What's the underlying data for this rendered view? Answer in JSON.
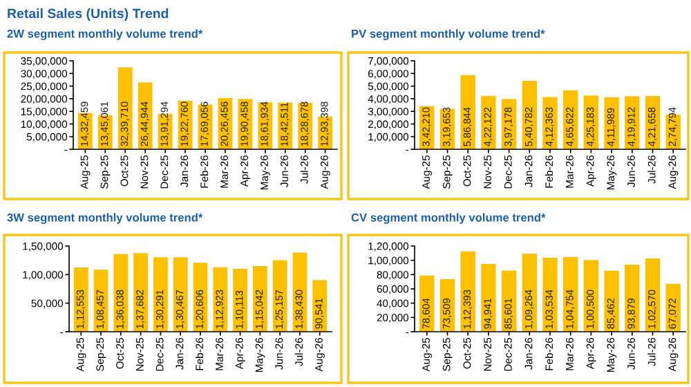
{
  "chart_data": [
    {
      "type": "bar",
      "title": "2W segment monthly volume trend*",
      "annotations": [
        "Retail Sales (Units) Trend"
      ],
      "categories": [
        "Aug-25",
        "Sep-25",
        "Oct-25",
        "Nov-25",
        "Dec-25",
        "Jan-26",
        "Feb-26",
        "Mar-26",
        "Apr-26",
        "May-26",
        "Jun-26",
        "Jul-26",
        "Aug-26"
      ],
      "series": [
        {
          "color": "#ffc000",
          "values": [
            1432459,
            1345061,
            3239710,
            2644944,
            1391294,
            1922760,
            1769056,
            2026456,
            1990458,
            1861934,
            1842511,
            1828678,
            1293398
          ],
          "value_labels": [
            "14,32,459",
            "13,45,061",
            "32,39,710",
            "26,44,944",
            "13,91,294",
            "19,22,760",
            "17,69,056",
            "20,26,456",
            "19,90,458",
            "18,61,934",
            "18,42,511",
            "18,28,678",
            "12,93,398"
          ]
        }
      ],
      "ylim": [
        0,
        3500000
      ],
      "yticks": [
        {
          "value": 0,
          "label": "-"
        },
        {
          "value": 500000,
          "label": "5,00,000"
        },
        {
          "value": 1000000,
          "label": "10,00,000"
        },
        {
          "value": 1500000,
          "label": "15,00,000"
        },
        {
          "value": 2000000,
          "label": "20,00,000"
        },
        {
          "value": 2500000,
          "label": "25,00,000"
        },
        {
          "value": 3000000,
          "label": "30,00,000"
        },
        {
          "value": 3500000,
          "label": "35,00,000"
        }
      ],
      "grid": false,
      "legend": false
    },
    {
      "type": "bar",
      "title": "PV segment monthly volume trend*",
      "categories": [
        "Aug-25",
        "Sep-25",
        "Oct-25",
        "Nov-25",
        "Dec-25",
        "Jan-26",
        "Feb-26",
        "Mar-26",
        "Apr-26",
        "May-26",
        "Jun-26",
        "Jul-26",
        "Aug-26"
      ],
      "series": [
        {
          "color": "#ffc000",
          "values": [
            342210,
            319653,
            586844,
            422122,
            397178,
            540782,
            412363,
            465622,
            425183,
            411989,
            419912,
            421658,
            274794
          ],
          "value_labels": [
            "3,42,210",
            "3,19,653",
            "5,86,844",
            "4,22,122",
            "3,97,178",
            "5,40,782",
            "4,12,363",
            "4,65,622",
            "4,25,183",
            "4,11,989",
            "4,19,912",
            "4,21,658",
            "2,74,794"
          ]
        }
      ],
      "ylim": [
        0,
        700000
      ],
      "yticks": [
        {
          "value": 0,
          "label": "-"
        },
        {
          "value": 100000,
          "label": "1,00,000"
        },
        {
          "value": 200000,
          "label": "2,00,000"
        },
        {
          "value": 300000,
          "label": "3,00,000"
        },
        {
          "value": 400000,
          "label": "4,00,000"
        },
        {
          "value": 500000,
          "label": "5,00,000"
        },
        {
          "value": 600000,
          "label": "6,00,000"
        },
        {
          "value": 700000,
          "label": "7,00,000"
        }
      ],
      "grid": false,
      "legend": false
    },
    {
      "type": "bar",
      "title": "3W segment monthly volume trend*",
      "categories": [
        "Aug-25",
        "Sep-25",
        "Oct-25",
        "Nov-25",
        "Dec-25",
        "Jan-26",
        "Feb-26",
        "Mar-26",
        "Apr-26",
        "May-26",
        "Jun-26",
        "Jul-26",
        "Aug-26"
      ],
      "series": [
        {
          "color": "#ffc000",
          "values": [
            112553,
            108457,
            136038,
            137682,
            130291,
            130467,
            120606,
            112923,
            110113,
            115042,
            125157,
            138430,
            90541
          ],
          "value_labels": [
            "1,12,553",
            "1,08,457",
            "1,36,038",
            "1,37,682",
            "1,30,291",
            "1,30,467",
            "1,20,606",
            "1,12,923",
            "1,10,113",
            "1,15,042",
            "1,25,157",
            "1,38,430",
            "90,541"
          ]
        }
      ],
      "ylim": [
        0,
        150000
      ],
      "yticks": [
        {
          "value": 0,
          "label": "-"
        },
        {
          "value": 50000,
          "label": "50,000"
        },
        {
          "value": 100000,
          "label": "1,00,000"
        },
        {
          "value": 150000,
          "label": "1,50,000"
        }
      ],
      "grid": false,
      "legend": false
    },
    {
      "type": "bar",
      "title": "CV segment monthly volume trend*",
      "categories": [
        "Aug-25",
        "Sep-25",
        "Oct-25",
        "Nov-25",
        "Dec-25",
        "Jan-26",
        "Feb-26",
        "Mar-26",
        "Apr-26",
        "May-26",
        "Jun-26",
        "Jul-26",
        "Aug-26"
      ],
      "series": [
        {
          "color": "#ffc000",
          "values": [
            78604,
            73509,
            112393,
            94941,
            85601,
            109264,
            103534,
            104754,
            100500,
            85462,
            93879,
            102570,
            67072
          ],
          "value_labels": [
            "78,604",
            "73,509",
            "1,12,393",
            "94,941",
            "85,601",
            "1,09,264",
            "1,03,534",
            "1,04,754",
            "1,00,500",
            "85,462",
            "93,879",
            "1,02,570",
            "67,072"
          ]
        }
      ],
      "ylim": [
        0,
        120000
      ],
      "yticks": [
        {
          "value": 0,
          "label": "-"
        },
        {
          "value": 20000,
          "label": "20,000"
        },
        {
          "value": 40000,
          "label": "40,000"
        },
        {
          "value": 60000,
          "label": "60,000"
        },
        {
          "value": 80000,
          "label": "80,000"
        },
        {
          "value": 100000,
          "label": "1,00,000"
        },
        {
          "value": 120000,
          "label": "1,20,000"
        }
      ],
      "grid": false,
      "legend": false
    }
  ]
}
